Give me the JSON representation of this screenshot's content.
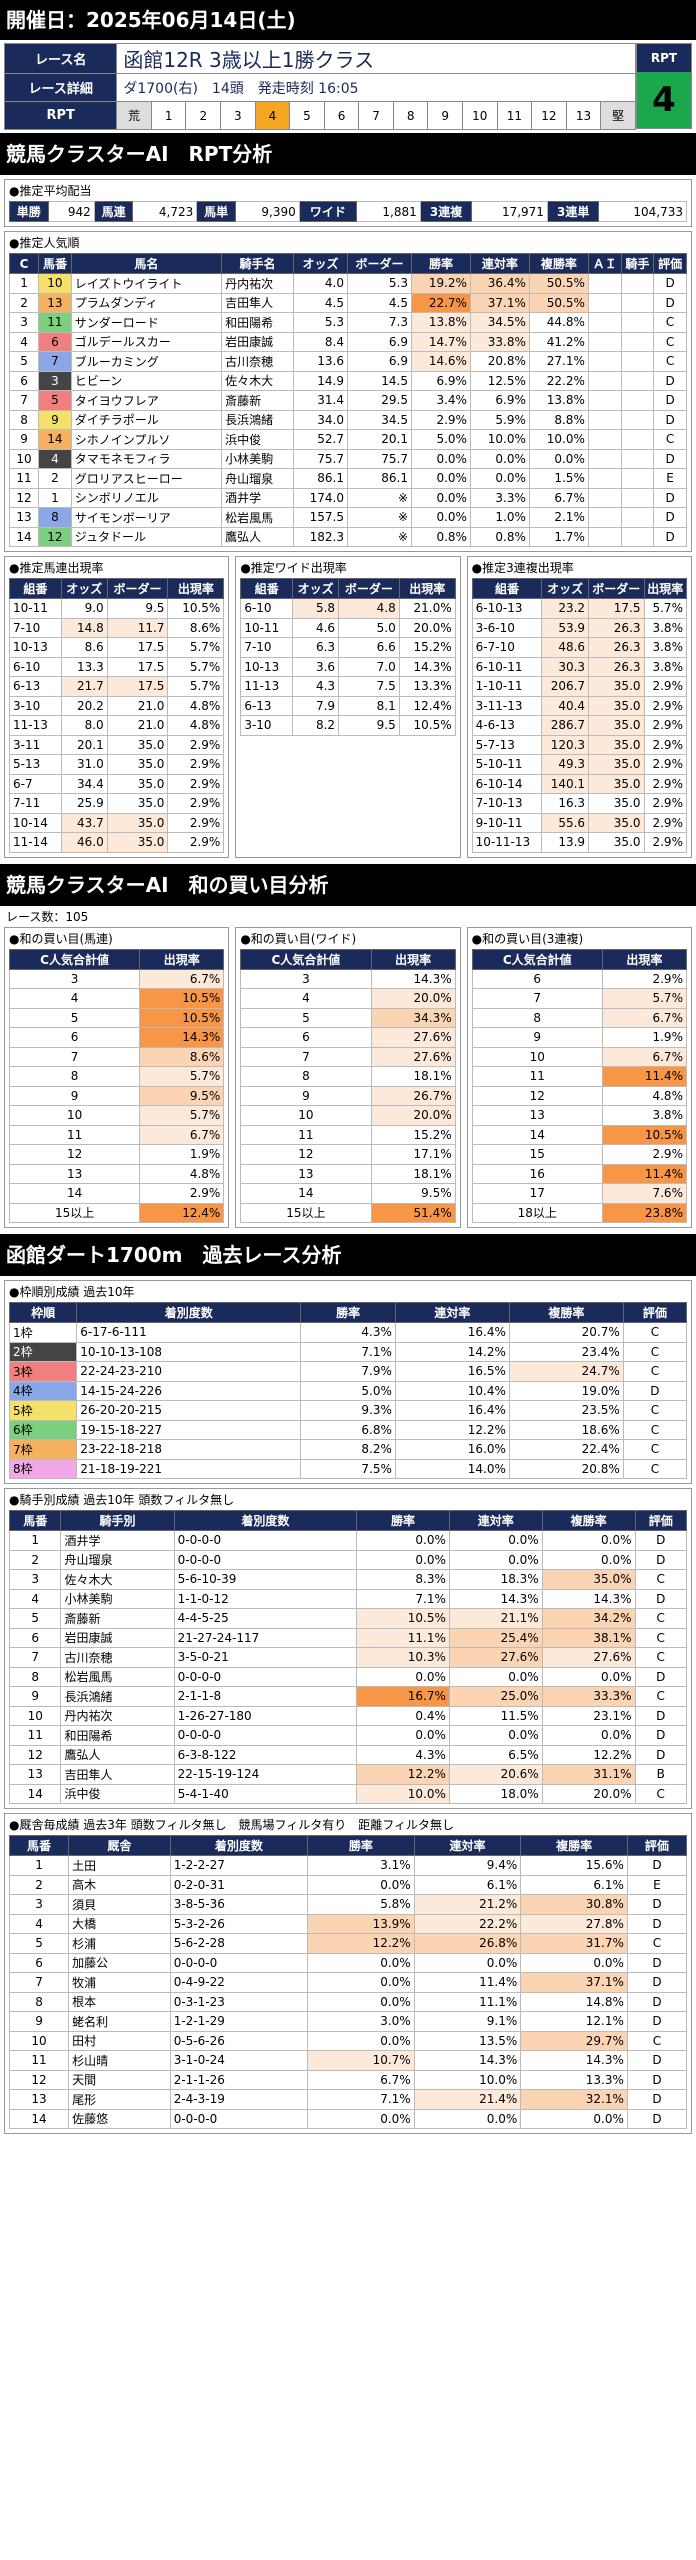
{
  "header": {
    "date_label": "開催日：2025年06月14日(土)"
  },
  "race": {
    "name_label": "レース名",
    "name": "函館12R 3歳以上1勝クラス",
    "detail_label": "レース詳細",
    "detail": "ダ1700(右)　14頭　発走時刻 16:05",
    "rpt_label": "RPT",
    "weeks": [
      "荒",
      "1",
      "2",
      "3",
      "4",
      "5",
      "6",
      "7",
      "8",
      "9",
      "10",
      "11",
      "12",
      "13",
      "堅"
    ],
    "current_week_index": 4,
    "rpt_title": "RPT",
    "rpt_value": "4"
  },
  "section1": "競馬クラスターAI　RPT分析",
  "avg": {
    "title": "●推定平均配当",
    "items": [
      [
        "単勝",
        "942"
      ],
      [
        "馬連",
        "4,723"
      ],
      [
        "馬単",
        "9,390"
      ],
      [
        "ワイド",
        "1,881"
      ],
      [
        "3連複",
        "17,971"
      ],
      [
        "3連単",
        "104,733"
      ]
    ]
  },
  "pop": {
    "title": "●推定人気順",
    "headers": [
      "C",
      "馬番",
      "馬名",
      "騎手名",
      "オッズ",
      "ボーダー",
      "勝率",
      "連対率",
      "複勝率",
      "ＡＩ",
      "騎手",
      "評価"
    ],
    "rows": [
      [
        "1",
        "10",
        "レイズトウイライト",
        "丹内祐次",
        "4.0",
        "5.3",
        "19.2%",
        "36.4%",
        "50.5%",
        "",
        "",
        "D"
      ],
      [
        "2",
        "13",
        "プラムダンディ",
        "吉田隼人",
        "4.5",
        "4.5",
        "22.7%",
        "37.1%",
        "50.5%",
        "",
        "",
        "D"
      ],
      [
        "3",
        "11",
        "サンダーロード",
        "和田陽希",
        "5.3",
        "7.3",
        "13.8%",
        "34.5%",
        "44.8%",
        "",
        "",
        "C"
      ],
      [
        "4",
        "6",
        "ゴルデールスカー",
        "岩田康誠",
        "8.4",
        "6.9",
        "14.7%",
        "33.8%",
        "41.2%",
        "",
        "",
        "C"
      ],
      [
        "5",
        "7",
        "ブルーカミング",
        "古川奈穂",
        "13.6",
        "6.9",
        "14.6%",
        "20.8%",
        "27.1%",
        "",
        "",
        "C"
      ],
      [
        "6",
        "3",
        "ヒビーン",
        "佐々木大",
        "14.9",
        "14.5",
        "6.9%",
        "12.5%",
        "22.2%",
        "",
        "",
        "D"
      ],
      [
        "7",
        "5",
        "タイヨウフレア",
        "斎藤新",
        "31.4",
        "29.5",
        "3.4%",
        "6.9%",
        "13.8%",
        "",
        "",
        "D"
      ],
      [
        "8",
        "9",
        "ダイチラポール",
        "長浜鴻緒",
        "34.0",
        "34.5",
        "2.9%",
        "5.9%",
        "8.8%",
        "",
        "",
        "D"
      ],
      [
        "9",
        "14",
        "シホノインプルソ",
        "浜中俊",
        "52.7",
        "20.1",
        "5.0%",
        "10.0%",
        "10.0%",
        "",
        "",
        "C"
      ],
      [
        "10",
        "4",
        "タマモネモフィラ",
        "小林美駒",
        "75.7",
        "75.7",
        "0.0%",
        "0.0%",
        "0.0%",
        "",
        "",
        "D"
      ],
      [
        "11",
        "2",
        "グロリアスヒーロー",
        "舟山瑠泉",
        "86.1",
        "86.1",
        "0.0%",
        "0.0%",
        "1.5%",
        "",
        "",
        "E"
      ],
      [
        "12",
        "1",
        "シンボリノエル",
        "酒井学",
        "174.0",
        "※",
        "0.0%",
        "3.3%",
        "6.7%",
        "",
        "",
        "D"
      ],
      [
        "13",
        "8",
        "サイモンボーリア",
        "松岩風馬",
        "157.5",
        "※",
        "0.0%",
        "1.0%",
        "2.1%",
        "",
        "",
        "D"
      ],
      [
        "14",
        "12",
        "ジュタドール",
        "鷹弘人",
        "182.3",
        "※",
        "0.8%",
        "0.8%",
        "1.7%",
        "",
        "",
        "D"
      ]
    ]
  },
  "umaren": {
    "title": "●推定馬連出現率",
    "headers": [
      "組番",
      "オッズ",
      "ボーダー",
      "出現率"
    ],
    "rows": [
      [
        "10-11",
        "9.0",
        "9.5",
        "10.5%"
      ],
      [
        "7-10",
        "14.8",
        "11.7",
        "8.6%"
      ],
      [
        "10-13",
        "8.6",
        "17.5",
        "5.7%"
      ],
      [
        "6-10",
        "13.3",
        "17.5",
        "5.7%"
      ],
      [
        "6-13",
        "21.7",
        "17.5",
        "5.7%"
      ],
      [
        "3-10",
        "20.2",
        "21.0",
        "4.8%"
      ],
      [
        "11-13",
        "8.0",
        "21.0",
        "4.8%"
      ],
      [
        "3-11",
        "20.1",
        "35.0",
        "2.9%"
      ],
      [
        "5-13",
        "31.0",
        "35.0",
        "2.9%"
      ],
      [
        "6-7",
        "34.4",
        "35.0",
        "2.9%"
      ],
      [
        "7-11",
        "25.9",
        "35.0",
        "2.9%"
      ],
      [
        "10-14",
        "43.7",
        "35.0",
        "2.9%"
      ],
      [
        "11-14",
        "46.0",
        "35.0",
        "2.9%"
      ]
    ]
  },
  "wide": {
    "title": "●推定ワイド出現率",
    "headers": [
      "組番",
      "オッズ",
      "ボーダー",
      "出現率"
    ],
    "rows": [
      [
        "6-10",
        "5.8",
        "4.8",
        "21.0%"
      ],
      [
        "10-11",
        "4.6",
        "5.0",
        "20.0%"
      ],
      [
        "7-10",
        "6.3",
        "6.6",
        "15.2%"
      ],
      [
        "10-13",
        "3.6",
        "7.0",
        "14.3%"
      ],
      [
        "11-13",
        "4.3",
        "7.5",
        "13.3%"
      ],
      [
        "6-13",
        "7.9",
        "8.1",
        "12.4%"
      ],
      [
        "3-10",
        "8.2",
        "9.5",
        "10.5%"
      ]
    ]
  },
  "sanren": {
    "title": "●推定3連複出現率",
    "headers": [
      "組番",
      "オッズ",
      "ボーダー",
      "出現率"
    ],
    "rows": [
      [
        "6-10-13",
        "23.2",
        "17.5",
        "5.7%"
      ],
      [
        "3-6-10",
        "53.9",
        "26.3",
        "3.8%"
      ],
      [
        "6-7-10",
        "48.6",
        "26.3",
        "3.8%"
      ],
      [
        "6-10-11",
        "30.3",
        "26.3",
        "3.8%"
      ],
      [
        "1-10-11",
        "206.7",
        "35.0",
        "2.9%"
      ],
      [
        "3-11-13",
        "40.4",
        "35.0",
        "2.9%"
      ],
      [
        "4-6-13",
        "286.7",
        "35.0",
        "2.9%"
      ],
      [
        "5-7-13",
        "120.3",
        "35.0",
        "2.9%"
      ],
      [
        "5-10-11",
        "49.3",
        "35.0",
        "2.9%"
      ],
      [
        "6-10-14",
        "140.1",
        "35.0",
        "2.9%"
      ],
      [
        "7-10-13",
        "16.3",
        "35.0",
        "2.9%"
      ],
      [
        "9-10-11",
        "55.6",
        "35.0",
        "2.9%"
      ],
      [
        "10-11-13",
        "13.9",
        "35.0",
        "2.9%"
      ]
    ]
  },
  "section2": "競馬クラスターAI　和の買い目分析",
  "race_count": "レース数：105",
  "wa": [
    {
      "title": "●和の買い目(馬連)",
      "h1": "C人気合計値",
      "h2": "出現率",
      "rows": [
        [
          "3",
          "6.7%"
        ],
        [
          "4",
          "10.5%"
        ],
        [
          "5",
          "10.5%"
        ],
        [
          "6",
          "14.3%"
        ],
        [
          "7",
          "8.6%"
        ],
        [
          "8",
          "5.7%"
        ],
        [
          "9",
          "9.5%"
        ],
        [
          "10",
          "5.7%"
        ],
        [
          "11",
          "6.7%"
        ],
        [
          "12",
          "1.9%"
        ],
        [
          "13",
          "4.8%"
        ],
        [
          "14",
          "2.9%"
        ],
        [
          "15以上",
          "12.4%"
        ]
      ]
    },
    {
      "title": "●和の買い目(ワイド)",
      "h1": "C人気合計値",
      "h2": "出現率",
      "rows": [
        [
          "3",
          "14.3%"
        ],
        [
          "4",
          "20.0%"
        ],
        [
          "5",
          "34.3%"
        ],
        [
          "6",
          "27.6%"
        ],
        [
          "7",
          "27.6%"
        ],
        [
          "8",
          "18.1%"
        ],
        [
          "9",
          "26.7%"
        ],
        [
          "10",
          "20.0%"
        ],
        [
          "11",
          "15.2%"
        ],
        [
          "12",
          "17.1%"
        ],
        [
          "13",
          "18.1%"
        ],
        [
          "14",
          "9.5%"
        ],
        [
          "15以上",
          "51.4%"
        ]
      ]
    },
    {
      "title": "●和の買い目(3連複)",
      "h1": "C人気合計値",
      "h2": "出現率",
      "rows": [
        [
          "6",
          "2.9%"
        ],
        [
          "7",
          "5.7%"
        ],
        [
          "8",
          "6.7%"
        ],
        [
          "9",
          "1.9%"
        ],
        [
          "10",
          "6.7%"
        ],
        [
          "11",
          "11.4%"
        ],
        [
          "12",
          "4.8%"
        ],
        [
          "13",
          "3.8%"
        ],
        [
          "14",
          "10.5%"
        ],
        [
          "15",
          "2.9%"
        ],
        [
          "16",
          "11.4%"
        ],
        [
          "17",
          "7.6%"
        ],
        [
          "18以上",
          "23.8%"
        ]
      ]
    }
  ],
  "section3": "函館ダート1700m　過去レース分析",
  "waku": {
    "title": "●枠順別成績 過去10年",
    "headers": [
      "枠順",
      "着別度数",
      "勝率",
      "連対率",
      "複勝率",
      "評価"
    ],
    "rows": [
      [
        "1枠",
        "6-17-6-111",
        "4.3%",
        "16.4%",
        "20.7%",
        "C"
      ],
      [
        "2枠",
        "10-10-13-108",
        "7.1%",
        "14.2%",
        "23.4%",
        "C"
      ],
      [
        "3枠",
        "22-24-23-210",
        "7.9%",
        "16.5%",
        "24.7%",
        "C"
      ],
      [
        "4枠",
        "14-15-24-226",
        "5.0%",
        "10.4%",
        "19.0%",
        "D"
      ],
      [
        "5枠",
        "26-20-20-215",
        "9.3%",
        "16.4%",
        "23.5%",
        "C"
      ],
      [
        "6枠",
        "19-15-18-227",
        "6.8%",
        "12.2%",
        "18.6%",
        "C"
      ],
      [
        "7枠",
        "23-22-18-218",
        "8.2%",
        "16.0%",
        "22.4%",
        "C"
      ],
      [
        "8枠",
        "21-18-19-221",
        "7.5%",
        "14.0%",
        "20.8%",
        "C"
      ]
    ]
  },
  "jockey": {
    "title": "●騎手別成績 過去10年 頭数フィルタ無し",
    "headers": [
      "馬番",
      "騎手別",
      "着別度数",
      "勝率",
      "連対率",
      "複勝率",
      "評価"
    ],
    "rows": [
      [
        "1",
        "酒井学",
        "0-0-0-0",
        "0.0%",
        "0.0%",
        "0.0%",
        "D"
      ],
      [
        "2",
        "舟山瑠泉",
        "0-0-0-0",
        "0.0%",
        "0.0%",
        "0.0%",
        "D"
      ],
      [
        "3",
        "佐々木大",
        "5-6-10-39",
        "8.3%",
        "18.3%",
        "35.0%",
        "C"
      ],
      [
        "4",
        "小林美駒",
        "1-1-0-12",
        "7.1%",
        "14.3%",
        "14.3%",
        "D"
      ],
      [
        "5",
        "斎藤新",
        "4-4-5-25",
        "10.5%",
        "21.1%",
        "34.2%",
        "C"
      ],
      [
        "6",
        "岩田康誠",
        "21-27-24-117",
        "11.1%",
        "25.4%",
        "38.1%",
        "C"
      ],
      [
        "7",
        "古川奈穂",
        "3-5-0-21",
        "10.3%",
        "27.6%",
        "27.6%",
        "C"
      ],
      [
        "8",
        "松岩風馬",
        "0-0-0-0",
        "0.0%",
        "0.0%",
        "0.0%",
        "D"
      ],
      [
        "9",
        "長浜鴻緒",
        "2-1-1-8",
        "16.7%",
        "25.0%",
        "33.3%",
        "C"
      ],
      [
        "10",
        "丹内祐次",
        "1-26-27-180",
        "0.4%",
        "11.5%",
        "23.1%",
        "D"
      ],
      [
        "11",
        "和田陽希",
        "0-0-0-0",
        "0.0%",
        "0.0%",
        "0.0%",
        "D"
      ],
      [
        "12",
        "鷹弘人",
        "6-3-8-122",
        "4.3%",
        "6.5%",
        "12.2%",
        "D"
      ],
      [
        "13",
        "吉田隼人",
        "22-15-19-124",
        "12.2%",
        "20.6%",
        "31.1%",
        "B"
      ],
      [
        "14",
        "浜中俊",
        "5-4-1-40",
        "10.0%",
        "18.0%",
        "20.0%",
        "C"
      ]
    ]
  },
  "stable": {
    "title": "●厩舎毎成績 過去3年 頭数フィルタ無し　競馬場フィルタ有り　距離フィルタ無し",
    "headers": [
      "馬番",
      "厩舎",
      "着別度数",
      "勝率",
      "連対率",
      "複勝率",
      "評価"
    ],
    "rows": [
      [
        "1",
        "土田",
        "1-2-2-27",
        "3.1%",
        "9.4%",
        "15.6%",
        "D"
      ],
      [
        "2",
        "高木",
        "0-2-0-31",
        "0.0%",
        "6.1%",
        "6.1%",
        "E"
      ],
      [
        "3",
        "須貝",
        "3-8-5-36",
        "5.8%",
        "21.2%",
        "30.8%",
        "D"
      ],
      [
        "4",
        "大橋",
        "5-3-2-26",
        "13.9%",
        "22.2%",
        "27.8%",
        "D"
      ],
      [
        "5",
        "杉浦",
        "5-6-2-28",
        "12.2%",
        "26.8%",
        "31.7%",
        "C"
      ],
      [
        "6",
        "加藤公",
        "0-0-0-0",
        "0.0%",
        "0.0%",
        "0.0%",
        "D"
      ],
      [
        "7",
        "牧浦",
        "0-4-9-22",
        "0.0%",
        "11.4%",
        "37.1%",
        "D"
      ],
      [
        "8",
        "根本",
        "0-3-1-23",
        "0.0%",
        "11.1%",
        "14.8%",
        "D"
      ],
      [
        "9",
        "蛯名利",
        "1-2-1-29",
        "3.0%",
        "9.1%",
        "12.1%",
        "D"
      ],
      [
        "10",
        "田村",
        "0-5-6-26",
        "0.0%",
        "13.5%",
        "29.7%",
        "C"
      ],
      [
        "11",
        "杉山晴",
        "3-1-0-24",
        "10.7%",
        "14.3%",
        "14.3%",
        "D"
      ],
      [
        "12",
        "天間",
        "2-1-1-26",
        "6.7%",
        "10.0%",
        "13.3%",
        "D"
      ],
      [
        "13",
        "尾形",
        "2-4-3-19",
        "7.1%",
        "21.4%",
        "32.1%",
        "D"
      ],
      [
        "14",
        "佐藤悠",
        "0-0-0-0",
        "0.0%",
        "0.0%",
        "0.0%",
        "D"
      ]
    ]
  },
  "colors": {
    "waku": [
      "#ffffff",
      "#444444",
      "#f08080",
      "#8aa8e8",
      "#f5e06a",
      "#7ccf7c",
      "#f5b060",
      "#f0a8e8"
    ],
    "navy": "#1a2a5a",
    "rpt_green": "#1aa84a"
  }
}
